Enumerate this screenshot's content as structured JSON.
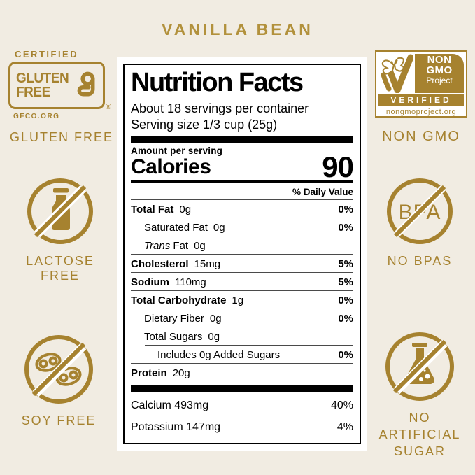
{
  "page": {
    "title": "VANILLA BEAN"
  },
  "colors": {
    "gold": "#A6822F",
    "gold_light": "#B2913C",
    "background": "#F1ECE2",
    "label_bg": "#FFFFFF",
    "label_border": "#000000"
  },
  "badges": {
    "gluten": {
      "certified": "CERTIFIED",
      "word1": "GLUTEN",
      "word2": "FREE",
      "registered": "®",
      "org": "GFCO.ORG",
      "caption": "GLUTEN FREE"
    },
    "lactose": {
      "caption": "LACTOSE FREE"
    },
    "soy": {
      "caption": "SOY FREE"
    },
    "nongmo": {
      "line1": "NON",
      "line2": "GMO",
      "line3": "Project",
      "verified": "VERIFIED",
      "url": "nongmoproject.org",
      "caption": "NON GMO"
    },
    "bpa": {
      "text": "BPA",
      "caption": "NO BPAS"
    },
    "sugar": {
      "caption_line1": "NO ARTIFICIAL",
      "caption_line2": "SUGAR"
    }
  },
  "label": {
    "title": "Nutrition Facts",
    "servings_per_container": "About 18 servings per container",
    "serving_size": "Serving size 1/3 cup (25g)",
    "amount_per": "Amount per serving",
    "calories_label": "Calories",
    "calories_value": "90",
    "dv_header": "% Daily Value",
    "rows": [
      {
        "name": "Total Fat",
        "amount": "0g",
        "dv": "0%",
        "bold": true
      },
      {
        "name": "Saturated Fat",
        "amount": "0g",
        "dv": "0%",
        "level": 1
      },
      {
        "italic": "Trans",
        "name": "Fat",
        "amount": "0g",
        "dv": "",
        "level": 1
      },
      {
        "name": "Cholesterol",
        "amount": "15mg",
        "dv": "5%",
        "bold": true
      },
      {
        "name": "Sodium",
        "amount": "110mg",
        "dv": "5%",
        "bold": true
      },
      {
        "name": "Total Carbohydrate",
        "amount": "1g",
        "dv": "0%",
        "bold": true
      },
      {
        "name": "Dietary Fiber",
        "amount": "0g",
        "dv": "0%",
        "level": 1
      },
      {
        "name": "Total Sugars",
        "amount": "0g",
        "dv": "",
        "level": 1,
        "cut_border": true
      },
      {
        "name": "Includes 0g Added Sugars",
        "amount": "",
        "dv": "0%",
        "level": 2
      },
      {
        "name": "Protein",
        "amount": "20g",
        "dv": "",
        "bold": true,
        "no_line": true
      }
    ],
    "minerals": [
      {
        "name": "Calcium 493mg",
        "dv": "40%"
      },
      {
        "name": "Potassium 147mg",
        "dv": "4%"
      }
    ]
  }
}
